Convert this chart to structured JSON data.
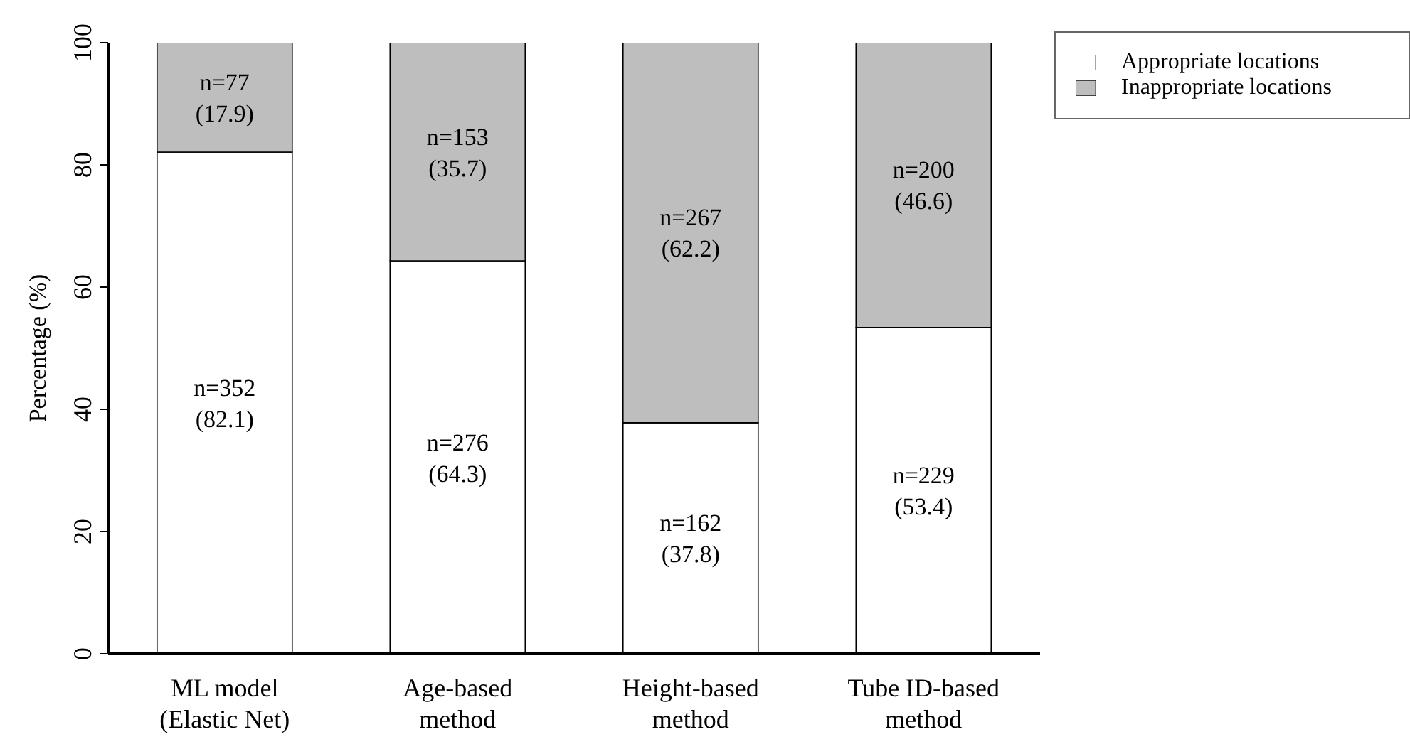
{
  "chart_data": {
    "type": "bar",
    "stacked": true,
    "ylabel": "Percentage (%)",
    "categories": [
      "ML model\n(Elastic Net)",
      "Age-based\nmethod",
      "Height-based\nmethod",
      "Tube ID-based\nmethod"
    ],
    "series": [
      {
        "name": "Appropriate locations",
        "color": "#ffffff",
        "values": [
          82.1,
          64.3,
          37.8,
          53.4
        ],
        "value_labels": [
          "n=352\n(82.1)",
          "n=276\n(64.3)",
          "n=162\n(37.8)",
          "n=229\n(53.4)"
        ]
      },
      {
        "name": "Inappropriate locations",
        "color": "#bebebe",
        "values": [
          17.9,
          35.7,
          62.2,
          46.6
        ],
        "value_labels": [
          "n=77\n(17.9)",
          "n=153\n(35.7)",
          "n=267\n(62.2)",
          "n=200\n(46.6)"
        ]
      }
    ],
    "ylim": [
      0,
      100
    ],
    "yticks": [
      0,
      20,
      40,
      60,
      80,
      100
    ],
    "grid": false,
    "legend": "top right"
  }
}
